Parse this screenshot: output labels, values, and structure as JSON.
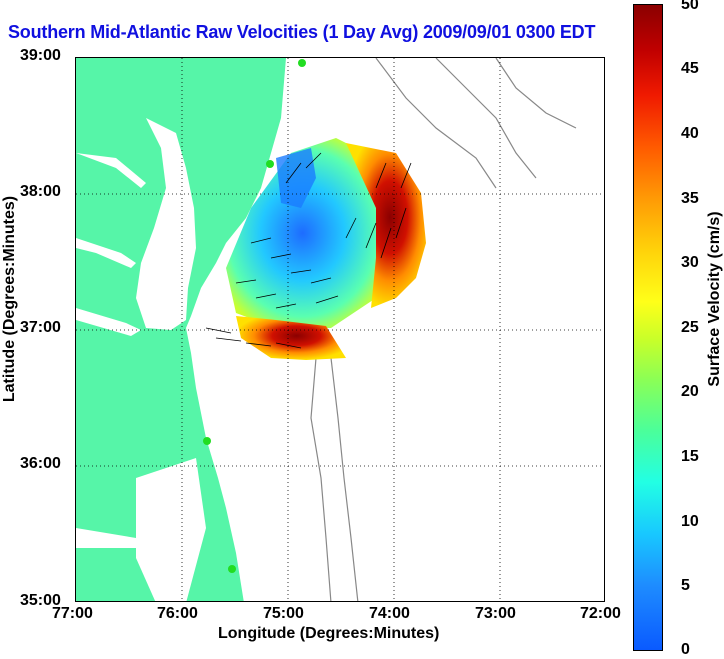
{
  "title": "Southern Mid-Atlantic Raw Velocities (1 Day Avg) 2009/09/01 0300 EDT",
  "x_axis": {
    "label": "Longitude (Degrees:Minutes)",
    "ticks": [
      "77:00",
      "76:00",
      "75:00",
      "74:00",
      "73:00",
      "72:00"
    ]
  },
  "y_axis": {
    "label": "Latitude (Degrees:Minutes)",
    "ticks": [
      "39:00",
      "38:00",
      "37:00",
      "36:00",
      "35:00"
    ]
  },
  "colorbar": {
    "label": "Surface Velocity (cm/s)",
    "ticks": [
      "50",
      "45",
      "40",
      "35",
      "30",
      "25",
      "20",
      "15",
      "10",
      "5",
      "0"
    ],
    "range": [
      0,
      50
    ]
  },
  "colors": {
    "land": "#56f5a8",
    "title": "#1010e0",
    "station": "#22dd22"
  }
}
